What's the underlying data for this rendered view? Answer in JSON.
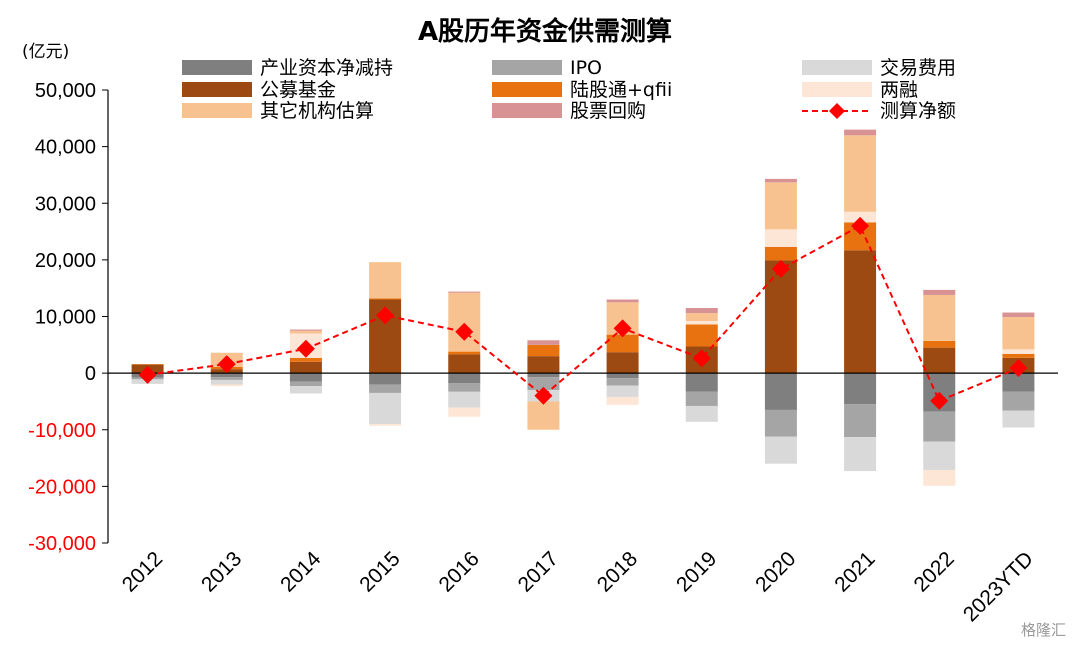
{
  "chart_data": {
    "type": "bar",
    "title": "A股历年资金供需测算",
    "unit_label": "(亿元)",
    "categories": [
      "2012",
      "2013",
      "2014",
      "2015",
      "2016",
      "2017",
      "2018",
      "2019",
      "2020",
      "2021",
      "2022",
      "2023YTD"
    ],
    "ylim": [
      -30000,
      50000
    ],
    "yticks": [
      50000,
      40000,
      30000,
      20000,
      10000,
      0,
      -10000,
      -20000,
      -30000
    ],
    "ytick_labels": [
      "50,000",
      "40,000",
      "30,000",
      "20,000",
      "10,000",
      "0",
      "-10,000",
      "-20,000",
      "-30,000"
    ],
    "grid": false,
    "legend_position": "top",
    "series": [
      {
        "name": "产业资本净减持",
        "color": "#7f7f7f",
        "values": [
          -800,
          -700,
          -1500,
          -2000,
          -1800,
          -700,
          -900,
          -3300,
          -6500,
          -5500,
          -6800,
          -3300
        ]
      },
      {
        "name": "IPO",
        "color": "#a5a5a5",
        "values": [
          -300,
          -500,
          -800,
          -1500,
          -1500,
          -2300,
          -1300,
          -2500,
          -4700,
          -5800,
          -5300,
          -3300
        ]
      },
      {
        "name": "交易费用",
        "color": "#d9d9d9",
        "values": [
          -800,
          -800,
          -1300,
          -5500,
          -2800,
          -2000,
          -2000,
          -2800,
          -4800,
          -6000,
          -5000,
          -3000
        ]
      },
      {
        "name": "公募基金",
        "color": "#9c4a12",
        "values": [
          1500,
          700,
          2000,
          13000,
          3300,
          3000,
          3700,
          4700,
          19900,
          21700,
          4500,
          2700
        ]
      },
      {
        "name": "陆股通+qfii",
        "color": "#e8720f",
        "values": [
          100,
          400,
          700,
          200,
          500,
          2000,
          3100,
          3900,
          2400,
          4900,
          1200,
          700
        ]
      },
      {
        "name": "两融",
        "color": "#fde6d6",
        "values": [
          0,
          -300,
          4300,
          -300,
          -1600,
          0,
          -1400,
          600,
          3100,
          1900,
          -2800,
          800
        ]
      },
      {
        "name": "其它机构估算",
        "color": "#f7c28f",
        "values": [
          0,
          2500,
          500,
          6400,
          10400,
          -5000,
          5700,
          1400,
          8300,
          13500,
          8100,
          5700
        ]
      },
      {
        "name": "股票回购",
        "color": "#d89294",
        "values": [
          0,
          0,
          200,
          0,
          200,
          800,
          500,
          900,
          600,
          1000,
          900,
          800
        ]
      }
    ],
    "line": {
      "name": "测算净额",
      "color": "#ff0000",
      "values": [
        -300,
        1600,
        4300,
        10200,
        7300,
        -4000,
        7900,
        2600,
        18400,
        26000,
        -4900,
        900
      ]
    }
  },
  "watermark": "格隆汇"
}
